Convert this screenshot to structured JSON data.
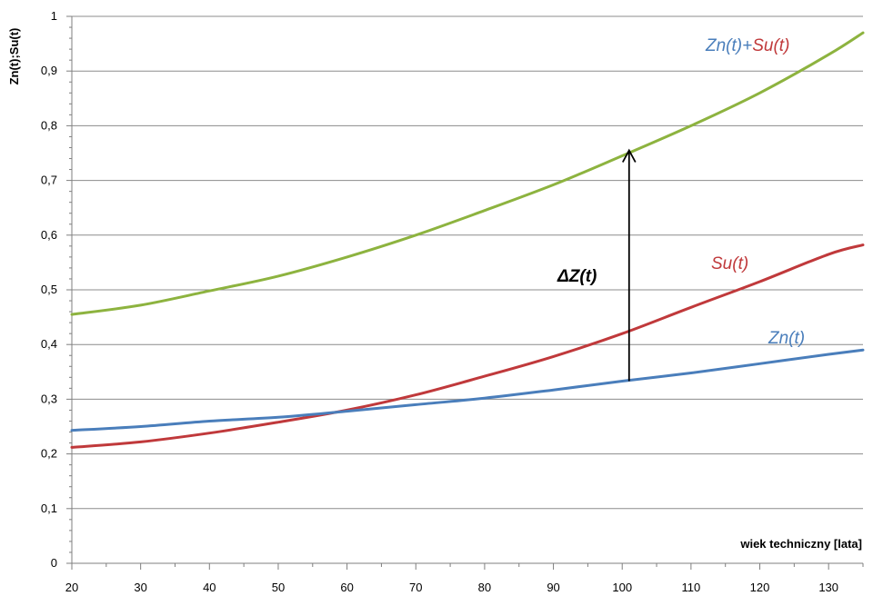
{
  "chart_data": {
    "type": "line",
    "xlabel": "wiek techniczny [lata]",
    "ylabel": "Zn(t);Su(t)",
    "xlim": [
      20,
      135
    ],
    "ylim": [
      0,
      1
    ],
    "x_ticks": [
      "20",
      "30",
      "40",
      "50",
      "60",
      "70",
      "80",
      "90",
      "100",
      "110",
      "120",
      "130"
    ],
    "y_ticks": [
      "0",
      "0,1",
      "0,2",
      "0,3",
      "0,4",
      "0,5",
      "0,6",
      "0,7",
      "0,8",
      "0,9",
      "1"
    ],
    "grid": "horizontal",
    "x": [
      20,
      30,
      40,
      50,
      60,
      70,
      80,
      90,
      100,
      110,
      120,
      130,
      135
    ],
    "series": [
      {
        "key": "sum",
        "color": "#8db33f",
        "values": [
          0.455,
          0.472,
          0.498,
          0.525,
          0.56,
          0.6,
          0.645,
          0.692,
          0.745,
          0.8,
          0.86,
          0.93,
          0.97
        ]
      },
      {
        "key": "su",
        "color": "#c0393b",
        "values": [
          0.212,
          0.222,
          0.238,
          0.258,
          0.28,
          0.308,
          0.342,
          0.378,
          0.42,
          0.468,
          0.515,
          0.565,
          0.582
        ]
      },
      {
        "key": "zn",
        "color": "#4a7ebb",
        "values": [
          0.243,
          0.25,
          0.26,
          0.267,
          0.278,
          0.29,
          0.302,
          0.317,
          0.333,
          0.348,
          0.365,
          0.382,
          0.39
        ]
      }
    ],
    "annotations": {
      "sum_label": {
        "part1": "Zn(t)",
        "plus": "+",
        "part2": "Su(t)",
        "color1": "#4a7ebb",
        "color2": "#c0393b"
      },
      "su_label": {
        "text": "Su(t)",
        "color": "#c0393b"
      },
      "zn_label": {
        "text": "Zn(t)",
        "color": "#4a7ebb"
      },
      "delta_label": {
        "text": "ΔZ(t)"
      },
      "delta_arrow": {
        "x": 101,
        "from": 0.333,
        "to": 0.755,
        "color": "#000000"
      }
    }
  }
}
